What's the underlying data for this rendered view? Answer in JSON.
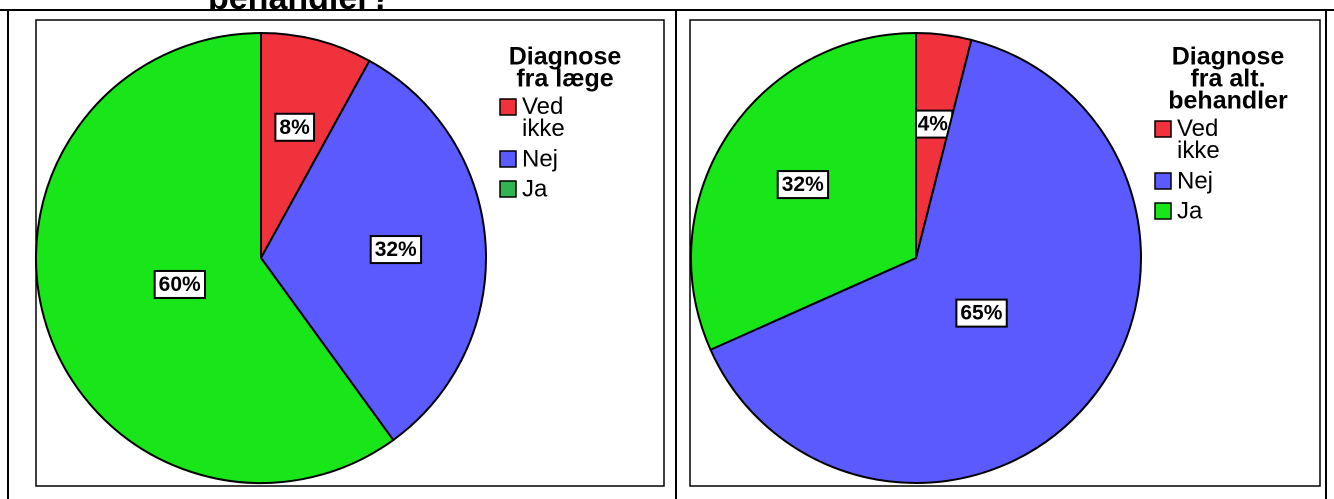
{
  "page_title": "behandler?",
  "chart_data": [
    {
      "type": "pie",
      "legend_title": [
        "Diagnose",
        "fra læge"
      ],
      "categories": [
        "Ved ikke",
        "Nej",
        "Ja"
      ],
      "values": [
        8,
        32,
        60
      ],
      "value_labels": [
        "8%",
        "32%",
        "60%"
      ],
      "colors": [
        "#f0323c",
        "#5a5aff",
        "#19e619"
      ],
      "legend_colors": [
        "#f0323c",
        "#5a5aff",
        "#32b450"
      ]
    },
    {
      "type": "pie",
      "legend_title": [
        "Diagnose",
        "fra alt.",
        "behandler"
      ],
      "categories": [
        "Ved ikke",
        "Nej",
        "Ja"
      ],
      "values": [
        4,
        65,
        32
      ],
      "value_labels": [
        "4%",
        "65%",
        "32%"
      ],
      "colors": [
        "#f0323c",
        "#5a5aff",
        "#19e619"
      ],
      "legend_colors": [
        "#f0323c",
        "#5a5aff",
        "#19e619"
      ]
    }
  ]
}
